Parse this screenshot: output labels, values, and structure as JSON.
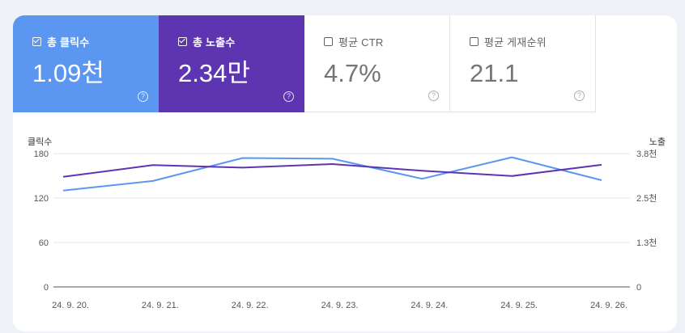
{
  "metrics": [
    {
      "key": "clicks",
      "label": "총 클릭수",
      "value": "1.09천",
      "checked": true
    },
    {
      "key": "impr",
      "label": "총 노출수",
      "value": "2.34만",
      "checked": true
    },
    {
      "key": "ctr",
      "label": "평균 CTR",
      "value": "4.7%",
      "checked": false
    },
    {
      "key": "pos",
      "label": "평균 게재순위",
      "value": "21.1",
      "checked": false
    }
  ],
  "help_icon_text": "?",
  "colors": {
    "clicks": "#5b96f1",
    "impressions": "#5e35b1"
  },
  "chart_data": {
    "type": "line",
    "x": [
      "24. 9. 20.",
      "24. 9. 21.",
      "24. 9. 22.",
      "24. 9. 23.",
      "24. 9. 24.",
      "24. 9. 25.",
      "24. 9. 26."
    ],
    "y_left_label": "클릭수",
    "y_right_label": "노출",
    "y_left_ticks": [
      "180",
      "120",
      "60",
      "0"
    ],
    "y_right_ticks": [
      "3.8천",
      "2.5천",
      "1.3천",
      "0"
    ],
    "y_left_range": [
      0,
      180
    ],
    "y_right_range": [
      0,
      3800
    ],
    "grid": true,
    "series": [
      {
        "key": "clicks",
        "axis": "left",
        "values": [
          130,
          143,
          174,
          173,
          146,
          175,
          144
        ]
      },
      {
        "key": "impressions",
        "axis": "right",
        "values": [
          3140,
          3470,
          3400,
          3500,
          3310,
          3160,
          3480
        ]
      }
    ]
  }
}
